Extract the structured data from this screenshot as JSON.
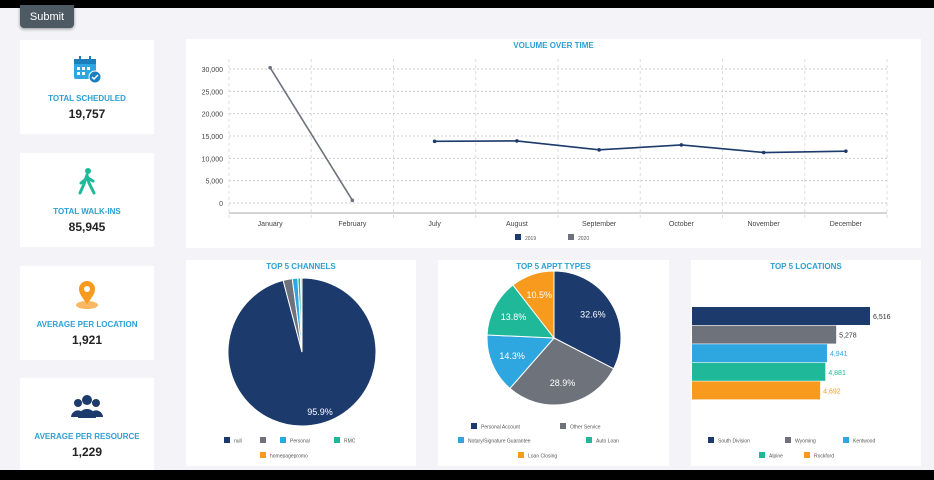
{
  "submit_label": "Submit",
  "kpis": [
    {
      "label": "TOTAL SCHEDULED",
      "value": "19,757",
      "icon": "calendar-check-icon"
    },
    {
      "label": "TOTAL WALK-INS",
      "value": "85,945",
      "icon": "walking-person-icon"
    },
    {
      "label": "AVERAGE PER LOCATION",
      "value": "1,921",
      "icon": "map-pin-icon"
    },
    {
      "label": "AVERAGE PER RESOURCE",
      "value": "1,229",
      "icon": "users-group-icon"
    }
  ],
  "colors": {
    "accent": "#2d9fd3",
    "navy": "#1c3a6b",
    "grey": "#6d727b",
    "blue": "#2ea7e0",
    "teal": "#1fb99a",
    "orange": "#f79a1e"
  },
  "chart_data": [
    {
      "type": "line",
      "title": "VOLUME OVER TIME",
      "categories": [
        "January",
        "February",
        "July",
        "August",
        "September",
        "October",
        "November",
        "December"
      ],
      "ylim": [
        0,
        30000
      ],
      "yticks": [
        "0",
        "5,000",
        "10,000",
        "15,000",
        "20,000",
        "25,000",
        "30,000"
      ],
      "grid": true,
      "legend": "bottom",
      "series": [
        {
          "name": "2019",
          "color": "#1c3a6b",
          "values": [
            null,
            null,
            13800,
            13900,
            11900,
            13000,
            11300,
            11600
          ]
        },
        {
          "name": "2020",
          "color": "#6d727b",
          "values": [
            30300,
            600,
            null,
            null,
            null,
            null,
            null,
            null
          ]
        }
      ]
    },
    {
      "type": "pie",
      "title": "TOP 5 CHANNELS",
      "legend": "bottom",
      "slices": [
        {
          "name": "null",
          "value": 95.9,
          "label": "95.9%",
          "color": "#1c3a6b"
        },
        {
          "name": "",
          "value": 2.0,
          "color": "#6d727b"
        },
        {
          "name": "Personal",
          "value": 1.2,
          "color": "#2ea7e0"
        },
        {
          "name": "RMC",
          "value": 0.6,
          "color": "#1fb99a"
        },
        {
          "name": "homepagepromo",
          "value": 0.3,
          "color": "#f79a1e"
        }
      ]
    },
    {
      "type": "pie",
      "title": "TOP 5 APPT TYPES",
      "legend": "bottom",
      "slices": [
        {
          "name": "Personal Account",
          "value": 32.6,
          "label": "32.6%",
          "color": "#1c3a6b"
        },
        {
          "name": "Other Service",
          "value": 28.9,
          "label": "28.9%",
          "color": "#6d727b"
        },
        {
          "name": "Notary/Signature Guarantee",
          "value": 14.3,
          "label": "14.3%",
          "color": "#2ea7e0"
        },
        {
          "name": "Auto Loan",
          "value": 13.8,
          "label": "13.8%",
          "color": "#1fb99a"
        },
        {
          "name": "Loan Closing",
          "value": 10.5,
          "label": "10.5%",
          "color": "#f79a1e"
        }
      ]
    },
    {
      "type": "bar",
      "orientation": "horizontal",
      "title": "TOP 5 LOCATIONS",
      "legend": "bottom",
      "categories": [
        "South Division",
        "Wyoming",
        "Kentwood",
        "Alpine",
        "Rockford"
      ],
      "values": [
        6516,
        5278,
        4941,
        4881,
        4692
      ],
      "labels": [
        "6,516",
        "5,278",
        "4,941",
        "4,881",
        "4,692"
      ],
      "colors": [
        "#1c3a6b",
        "#6d727b",
        "#2ea7e0",
        "#1fb99a",
        "#f79a1e"
      ]
    }
  ]
}
